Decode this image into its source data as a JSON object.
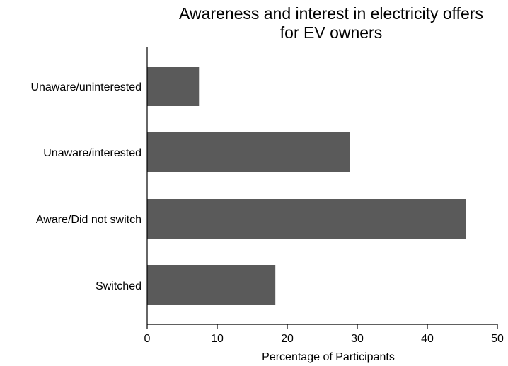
{
  "chart_data": {
    "type": "bar",
    "orientation": "horizontal",
    "title_lines": [
      "Awareness and interest in electricity offers",
      "for EV owners"
    ],
    "categories": [
      "Unaware/uninterested",
      "Unaware/interested",
      "Aware/Did not switch",
      "Switched"
    ],
    "values": [
      7.4,
      28.9,
      45.5,
      18.3
    ],
    "xlabel": "Percentage of Participants",
    "ylabel": "",
    "xlim": [
      0,
      50
    ],
    "xticks": [
      "0",
      "10",
      "20",
      "30",
      "40",
      "50"
    ],
    "grid": false,
    "legend": "none",
    "bar_color": "#5a5a5a"
  }
}
